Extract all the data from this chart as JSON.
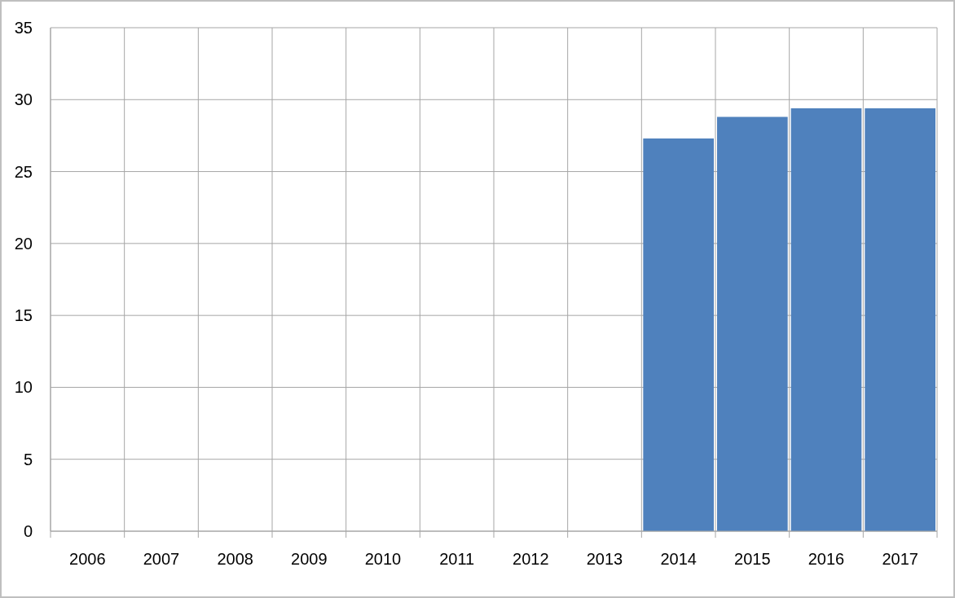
{
  "chart_data": {
    "type": "bar",
    "categories": [
      "2006",
      "2007",
      "2008",
      "2009",
      "2010",
      "2011",
      "2012",
      "2013",
      "2014",
      "2015",
      "2016",
      "2017"
    ],
    "values": [
      null,
      null,
      null,
      null,
      null,
      null,
      null,
      null,
      27.3,
      28.8,
      29.4,
      29.4
    ],
    "color": "#4f81bd",
    "ylim": [
      0,
      35
    ],
    "yticks": [
      0,
      5,
      10,
      15,
      20,
      25,
      30,
      35
    ],
    "grid": true
  }
}
